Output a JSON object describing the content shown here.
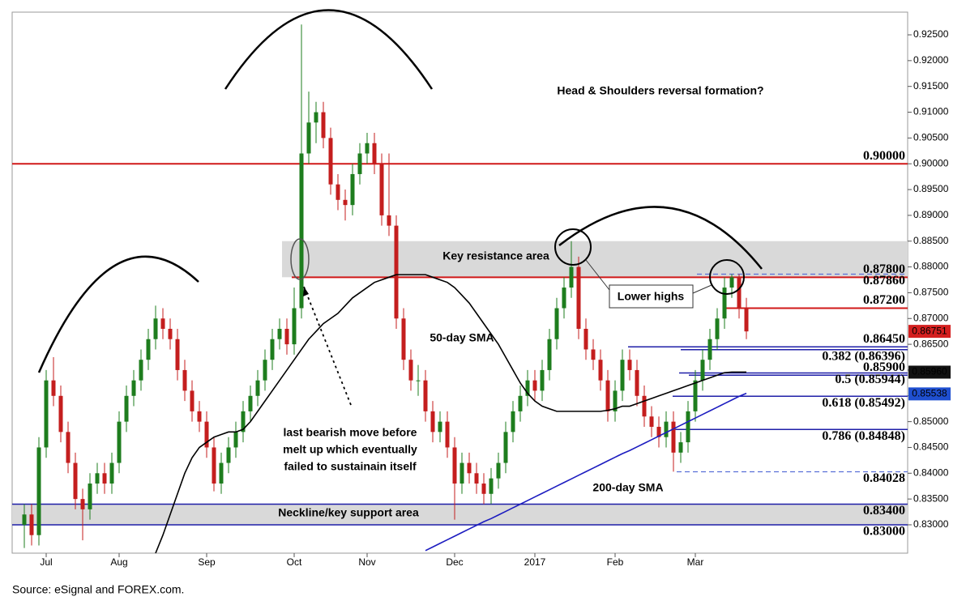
{
  "chart_data": {
    "type": "candlestick",
    "title": "Head & Shoulders reversal formation?",
    "categories": [
      null,
      null,
      null,
      "Jul",
      null,
      null,
      null,
      null,
      null,
      null,
      null,
      null,
      null,
      "Aug",
      null,
      null,
      null,
      null,
      null,
      null,
      null,
      null,
      null,
      null,
      null,
      "Sep",
      null,
      null,
      null,
      null,
      null,
      null,
      null,
      null,
      null,
      null,
      null,
      "Oct",
      null,
      null,
      null,
      null,
      null,
      null,
      null,
      null,
      null,
      "Nov",
      null,
      null,
      null,
      null,
      null,
      null,
      null,
      null,
      null,
      null,
      null,
      "Dec",
      null,
      null,
      null,
      null,
      null,
      null,
      null,
      null,
      null,
      null,
      "2017",
      null,
      null,
      null,
      null,
      null,
      null,
      null,
      null,
      null,
      null,
      "Feb",
      null,
      null,
      null,
      null,
      null,
      null,
      null,
      null,
      null,
      null,
      "Mar",
      null,
      null,
      null,
      null,
      null,
      null,
      null
    ],
    "open": [
      0.83,
      0.832,
      0.828,
      0.845,
      0.858,
      0.855,
      0.848,
      0.842,
      0.835,
      0.833,
      0.838,
      0.84,
      0.838,
      0.842,
      0.85,
      0.855,
      0.858,
      0.862,
      0.866,
      0.87,
      0.868,
      0.866,
      0.86,
      0.856,
      0.852,
      0.85,
      0.845,
      0.838,
      0.842,
      0.845,
      0.848,
      0.852,
      0.855,
      0.858,
      0.862,
      0.866,
      0.868,
      0.865,
      0.872,
      0.902,
      0.908,
      0.91,
      0.905,
      0.896,
      0.893,
      0.892,
      0.898,
      0.902,
      0.904,
      0.9,
      0.89,
      0.888,
      0.87,
      0.862,
      0.858,
      0.858,
      0.852,
      0.848,
      0.85,
      0.845,
      0.838,
      0.842,
      0.84,
      0.838,
      0.836,
      0.839,
      0.842,
      0.848,
      0.852,
      0.855,
      0.858,
      0.856,
      0.86,
      0.866,
      0.872,
      0.876,
      0.88,
      0.868,
      0.864,
      0.862,
      0.858,
      0.852,
      0.856,
      0.862,
      0.86,
      0.855,
      0.851,
      0.849,
      0.847,
      0.85,
      0.844,
      0.846,
      0.852,
      0.858,
      0.862,
      0.866,
      0.87,
      0.876,
      0.878,
      0.872
    ],
    "high": [
      0.834,
      0.834,
      0.847,
      0.86,
      0.8625,
      0.857,
      0.85,
      0.844,
      0.837,
      0.84,
      0.842,
      0.842,
      0.844,
      0.852,
      0.857,
      0.86,
      0.864,
      0.868,
      0.8725,
      0.872,
      0.87,
      0.868,
      0.862,
      0.858,
      0.854,
      0.852,
      0.847,
      0.844,
      0.847,
      0.85,
      0.854,
      0.857,
      0.86,
      0.864,
      0.868,
      0.87,
      0.87,
      0.876,
      0.927,
      0.914,
      0.912,
      0.912,
      0.907,
      0.898,
      0.895,
      0.9,
      0.904,
      0.906,
      0.906,
      0.902,
      0.902,
      0.89,
      0.872,
      0.864,
      0.861,
      0.86,
      0.854,
      0.852,
      0.852,
      0.847,
      0.844,
      0.844,
      0.842,
      0.84,
      0.841,
      0.844,
      0.85,
      0.854,
      0.857,
      0.86,
      0.86,
      0.862,
      0.868,
      0.874,
      0.878,
      0.885,
      0.882,
      0.87,
      0.866,
      0.864,
      0.86,
      0.858,
      0.864,
      0.864,
      0.862,
      0.857,
      0.853,
      0.851,
      0.852,
      0.852,
      0.848,
      0.854,
      0.86,
      0.864,
      0.868,
      0.872,
      0.878,
      0.8786,
      0.8786,
      0.874
    ],
    "low": [
      0.8255,
      0.826,
      0.826,
      0.843,
      0.853,
      0.846,
      0.84,
      0.833,
      0.827,
      0.831,
      0.836,
      0.836,
      0.836,
      0.84,
      0.848,
      0.853,
      0.856,
      0.86,
      0.864,
      0.866,
      0.864,
      0.858,
      0.854,
      0.85,
      0.848,
      0.843,
      0.8365,
      0.836,
      0.84,
      0.843,
      0.846,
      0.85,
      0.853,
      0.856,
      0.86,
      0.864,
      0.863,
      0.863,
      0.87,
      0.9,
      0.904,
      0.903,
      0.894,
      0.891,
      0.889,
      0.89,
      0.896,
      0.9,
      0.898,
      0.888,
      0.886,
      0.868,
      0.86,
      0.856,
      0.855,
      0.85,
      0.846,
      0.846,
      0.843,
      0.831,
      0.836,
      0.838,
      0.836,
      0.834,
      0.834,
      0.837,
      0.84,
      0.846,
      0.85,
      0.853,
      0.854,
      0.854,
      0.858,
      0.864,
      0.87,
      0.874,
      0.866,
      0.862,
      0.86,
      0.856,
      0.85,
      0.85,
      0.854,
      0.858,
      0.853,
      0.849,
      0.847,
      0.845,
      0.845,
      0.8403,
      0.842,
      0.844,
      0.85,
      0.856,
      0.86,
      0.864,
      0.868,
      0.874,
      0.87,
      0.866
    ],
    "close": [
      0.832,
      0.828,
      0.845,
      0.858,
      0.855,
      0.848,
      0.842,
      0.835,
      0.833,
      0.838,
      0.84,
      0.838,
      0.842,
      0.85,
      0.855,
      0.858,
      0.862,
      0.866,
      0.87,
      0.868,
      0.866,
      0.86,
      0.856,
      0.852,
      0.85,
      0.845,
      0.838,
      0.842,
      0.845,
      0.848,
      0.852,
      0.855,
      0.858,
      0.862,
      0.866,
      0.868,
      0.865,
      0.872,
      0.902,
      0.908,
      0.91,
      0.905,
      0.896,
      0.893,
      0.892,
      0.898,
      0.902,
      0.904,
      0.9,
      0.89,
      0.888,
      0.87,
      0.862,
      0.858,
      0.858,
      0.852,
      0.848,
      0.85,
      0.845,
      0.838,
      0.842,
      0.84,
      0.838,
      0.836,
      0.839,
      0.842,
      0.848,
      0.852,
      0.855,
      0.858,
      0.856,
      0.86,
      0.866,
      0.872,
      0.876,
      0.88,
      0.868,
      0.864,
      0.862,
      0.858,
      0.852,
      0.856,
      0.862,
      0.86,
      0.855,
      0.851,
      0.849,
      0.847,
      0.85,
      0.844,
      0.846,
      0.852,
      0.858,
      0.862,
      0.866,
      0.87,
      0.876,
      0.878,
      0.872,
      0.8675
    ],
    "candle_colors": {
      "up": "#1e7d1e",
      "down": "#c41e1e"
    },
    "lines": [
      {
        "name": "50-day SMA",
        "color": "#000000",
        "values": [
          null,
          null,
          null,
          null,
          null,
          null,
          null,
          null,
          null,
          null,
          null,
          null,
          null,
          null,
          null,
          null,
          null,
          null,
          0.8245,
          0.828,
          0.832,
          0.836,
          0.84,
          0.843,
          0.845,
          0.846,
          0.847,
          0.8475,
          0.848,
          0.848,
          0.8485,
          0.85,
          0.852,
          0.854,
          0.856,
          0.858,
          0.86,
          0.862,
          0.864,
          0.866,
          0.8675,
          0.869,
          0.87,
          0.871,
          0.8725,
          0.874,
          0.875,
          0.876,
          0.877,
          0.8775,
          0.878,
          0.8785,
          0.8785,
          0.8785,
          0.8785,
          0.8785,
          0.878,
          0.8775,
          0.877,
          0.876,
          0.8745,
          0.873,
          0.871,
          0.869,
          0.867,
          0.865,
          0.8625,
          0.86,
          0.8575,
          0.8555,
          0.854,
          0.853,
          0.8525,
          0.852,
          0.852,
          0.852,
          0.852,
          0.852,
          0.852,
          0.852,
          0.8522,
          0.8525,
          0.853,
          0.853,
          0.8535,
          0.854,
          0.8545,
          0.855,
          0.8555,
          0.856,
          0.8565,
          0.857,
          0.8575,
          0.858,
          0.8585,
          0.859,
          0.8595,
          0.8596,
          0.8596,
          0.8596
        ]
      },
      {
        "name": "200-day SMA",
        "color": "#1c1cc0",
        "values": [
          null,
          null,
          null,
          null,
          null,
          null,
          null,
          null,
          null,
          null,
          null,
          null,
          null,
          null,
          null,
          null,
          null,
          null,
          null,
          null,
          null,
          null,
          null,
          null,
          null,
          null,
          null,
          null,
          null,
          null,
          null,
          null,
          null,
          null,
          null,
          null,
          null,
          null,
          null,
          null,
          null,
          null,
          null,
          null,
          null,
          null,
          null,
          null,
          null,
          null,
          null,
          null,
          null,
          null,
          null,
          0.825,
          0.8257,
          0.8264,
          0.8271,
          0.8278,
          0.8285,
          0.8292,
          0.8299,
          0.8306,
          0.8312,
          0.8319,
          0.8326,
          0.8333,
          0.834,
          0.8347,
          0.8354,
          0.8361,
          0.8368,
          0.8375,
          0.8382,
          0.8389,
          0.8396,
          0.8403,
          0.841,
          0.8417,
          0.8424,
          0.8431,
          0.8438,
          0.8444,
          0.8451,
          0.8458,
          0.8465,
          0.8472,
          0.8479,
          0.8486,
          0.8493,
          0.85,
          0.8507,
          0.8514,
          0.8521,
          0.8528,
          0.8535,
          0.8542,
          0.8549,
          0.8555
        ]
      }
    ],
    "levels": [
      {
        "value": 0.9,
        "label": "0.90000",
        "color": "#d01818",
        "style": "solid"
      },
      {
        "value": 0.878,
        "label": "0.87800",
        "color": "#d01818",
        "style": "solid"
      },
      {
        "value": 0.8786,
        "label": "0.87860",
        "color": "#1f1fa8",
        "style": "dashed"
      },
      {
        "value": 0.872,
        "label": "0.87200",
        "color": "#d01818",
        "style": "solid"
      },
      {
        "value": 0.8645,
        "label": "0.86450",
        "color": "#1f1fa8",
        "style": "solid"
      },
      {
        "value": 0.86396,
        "label": "0.382 (0.86396)",
        "color": "#1f1fa8",
        "style": "solid"
      },
      {
        "value": 0.859,
        "label": "0.85900",
        "color": "#1f1fa8",
        "style": "solid"
      },
      {
        "value": 0.85944,
        "label": "0.5 (0.85944)",
        "color": "#1f1fa8",
        "style": "solid"
      },
      {
        "value": 0.85492,
        "label": "0.618 (0.85492)",
        "color": "#1f1fa8",
        "style": "solid"
      },
      {
        "value": 0.84848,
        "label": "0.786 (0.84848)",
        "color": "#1f1fa8",
        "style": "solid"
      },
      {
        "value": 0.84028,
        "label": "0.84028",
        "color": "#1f1fa8",
        "style": "dashed"
      },
      {
        "value": 0.834,
        "label": "0.83400",
        "color": "#1f1fa8",
        "style": "solid"
      },
      {
        "value": 0.83,
        "label": "0.83000",
        "color": "#1f1fa8",
        "style": "solid"
      }
    ],
    "bands": [
      {
        "from": 0.878,
        "to": 0.885,
        "label": "Key resistance area"
      },
      {
        "from": 0.83,
        "to": 0.834,
        "label": "Neckline/key support area"
      }
    ],
    "price_tags": [
      {
        "value": 0.86751,
        "label": "0.86751",
        "color": "#d42020"
      },
      {
        "value": 0.8596,
        "label": "0.85960",
        "color": "#111111"
      },
      {
        "value": 0.85538,
        "label": "0.85538",
        "color": "#1f4fd0"
      }
    ],
    "callout": "Lower highs",
    "note": [
      "last bearish move before",
      "melt up which eventually",
      "failed to sustainain itself"
    ],
    "ylim": [
      0.8245,
      0.9294
    ],
    "yticks": [
      {
        "value": 0.83,
        "label": "0.83000"
      },
      {
        "value": 0.835,
        "label": "0.83500"
      },
      {
        "value": 0.84,
        "label": "0.84000"
      },
      {
        "value": 0.845,
        "label": "0.84500"
      },
      {
        "value": 0.85,
        "label": "0.85000"
      },
      {
        "value": 0.855,
        "label": "0.85500"
      },
      {
        "value": 0.86,
        "label": "0.86000"
      },
      {
        "value": 0.865,
        "label": "0.86500"
      },
      {
        "value": 0.87,
        "label": "0.87000"
      },
      {
        "value": 0.875,
        "label": "0.87500"
      },
      {
        "value": 0.88,
        "label": "0.88000"
      },
      {
        "value": 0.885,
        "label": "0.88500"
      },
      {
        "value": 0.89,
        "label": "0.89000"
      },
      {
        "value": 0.895,
        "label": "0.89500"
      },
      {
        "value": 0.9,
        "label": "0.90000"
      },
      {
        "value": 0.905,
        "label": "0.90500"
      },
      {
        "value": 0.91,
        "label": "0.91000"
      },
      {
        "value": 0.915,
        "label": "0.91500"
      },
      {
        "value": 0.92,
        "label": "0.92000"
      },
      {
        "value": 0.925,
        "label": "0.92500"
      }
    ],
    "grid": false
  },
  "source": "Source: eSignal and FOREX.com."
}
